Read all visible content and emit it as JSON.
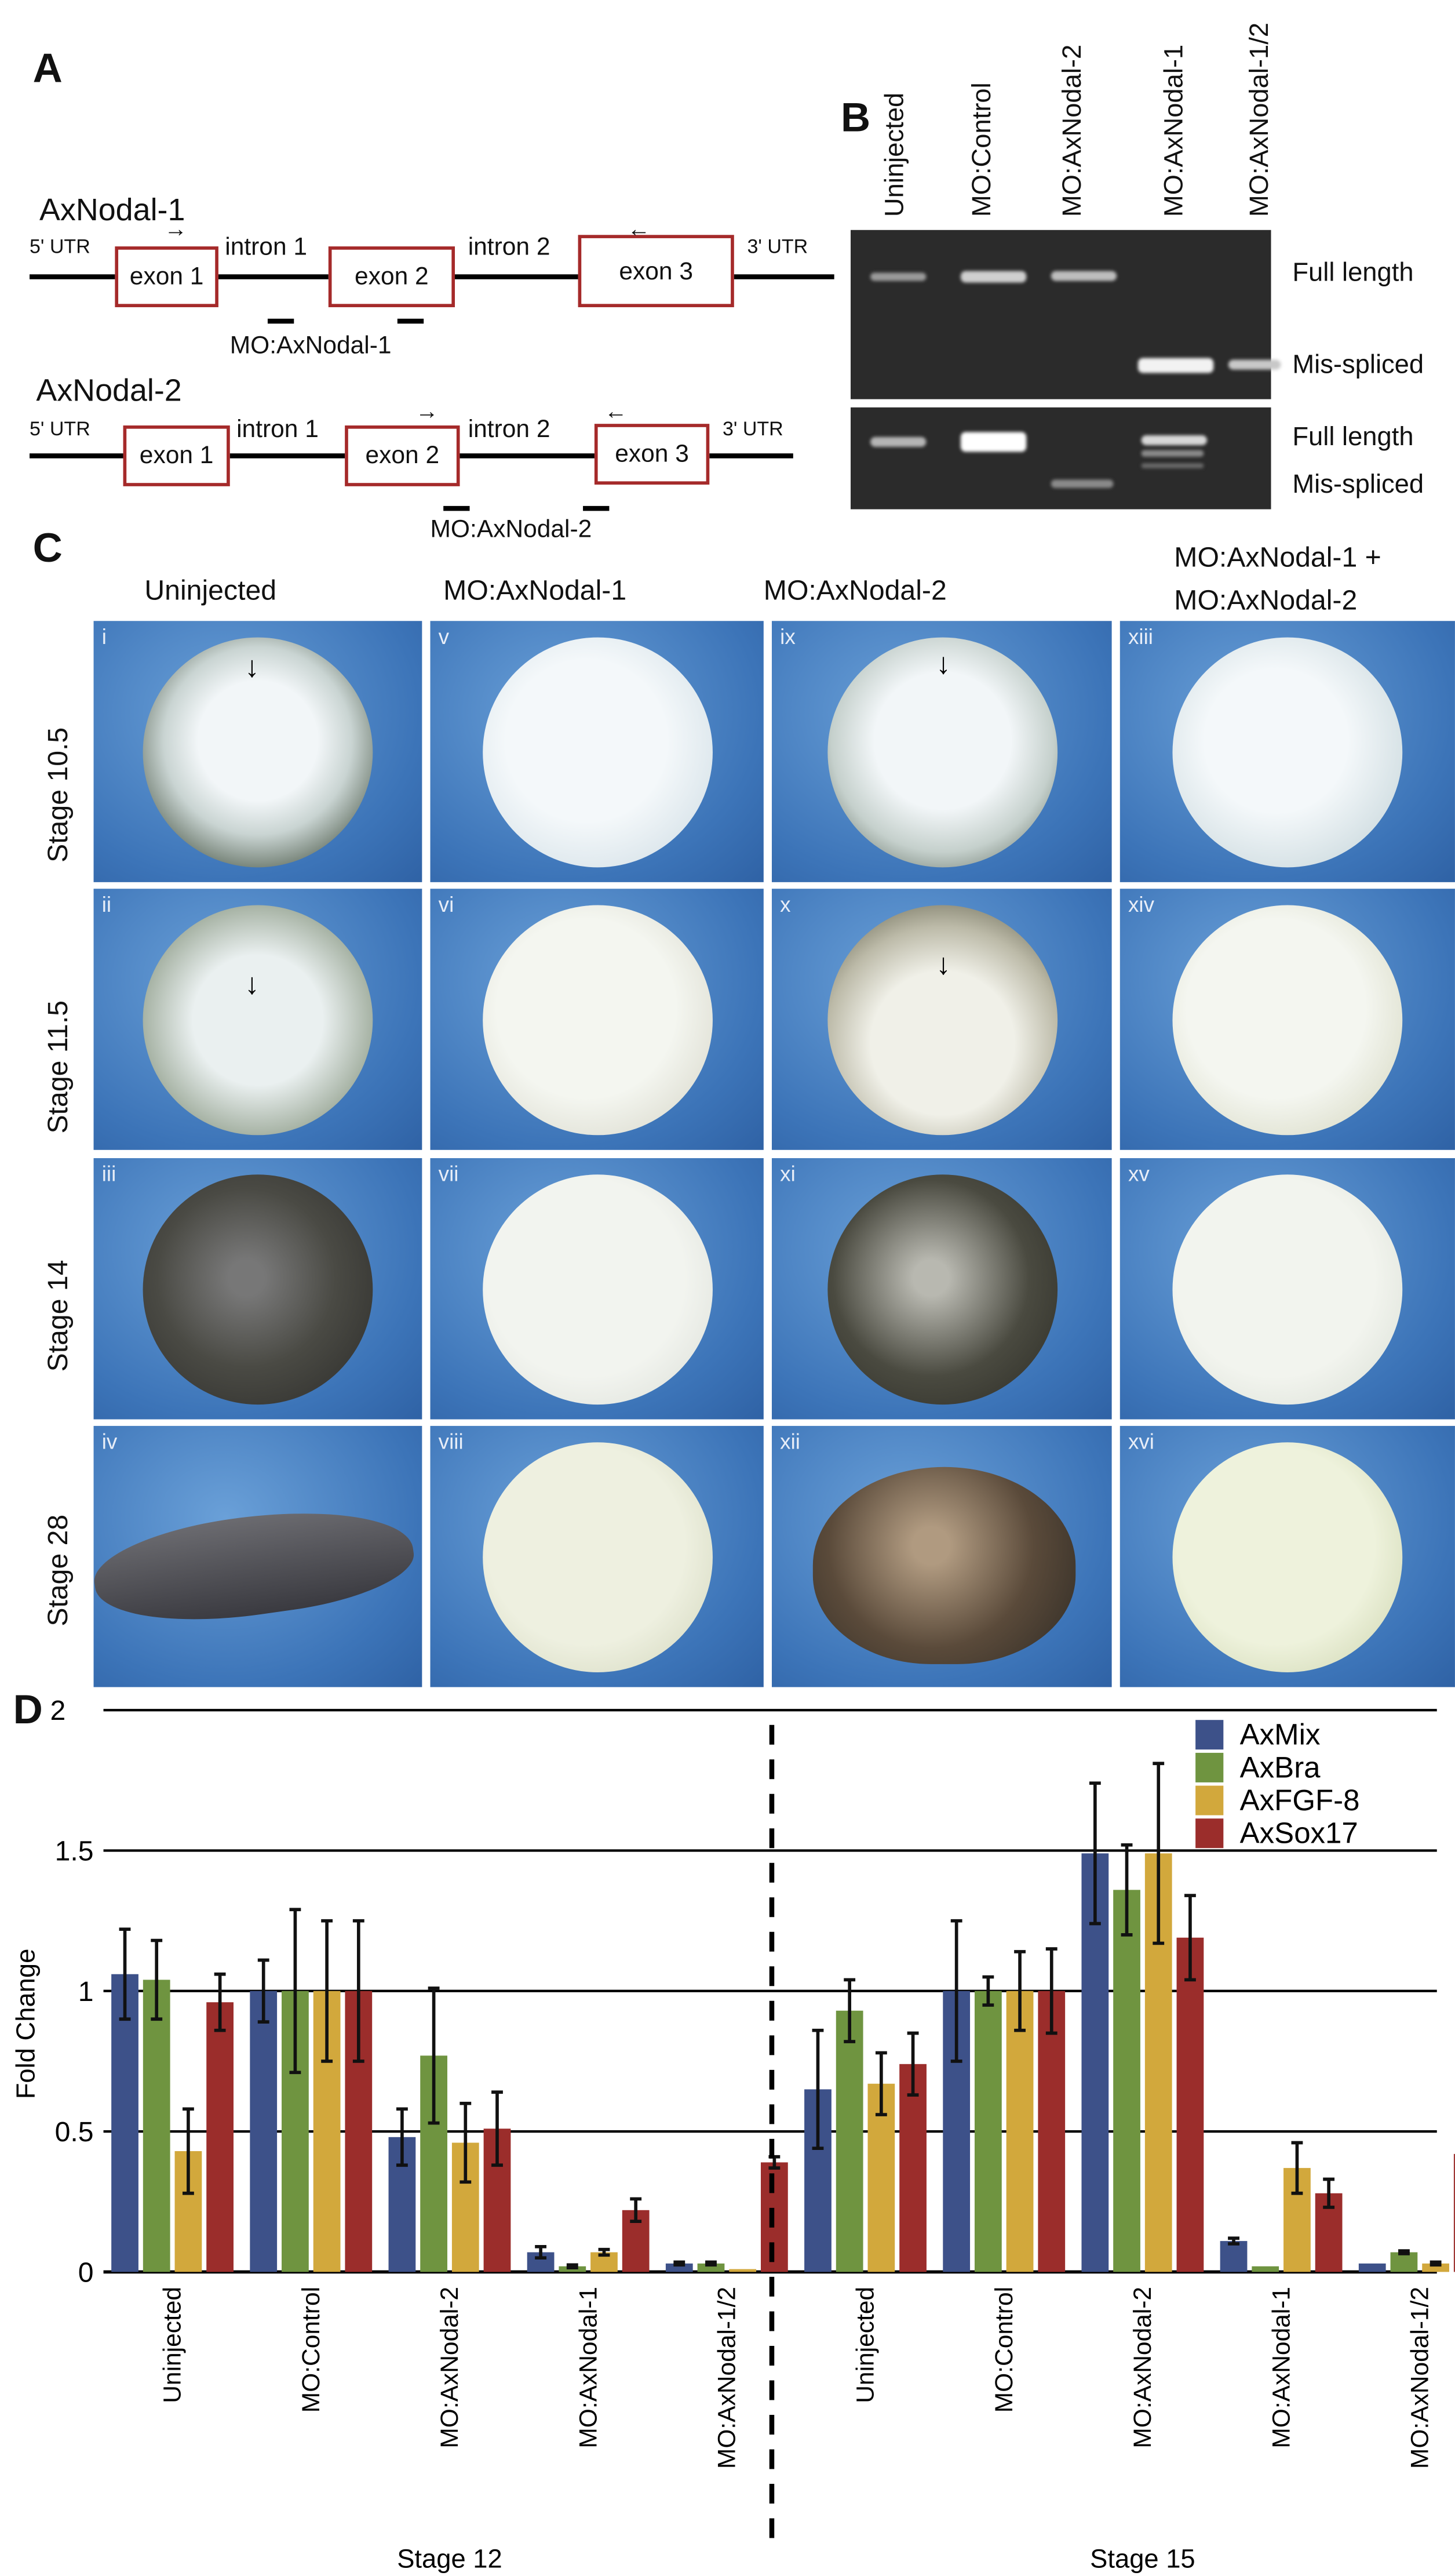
{
  "panel_labels": {
    "a": "A",
    "b": "B",
    "c": "C",
    "d": "D"
  },
  "panel_a": {
    "genes": [
      {
        "name": "AxNodal-1",
        "utr5": "5' UTR",
        "utr3": "3' UTR",
        "exons": [
          "exon 1",
          "exon 2",
          "exon 3"
        ],
        "introns": [
          "intron 1",
          "intron 2"
        ],
        "morpholino": "MO:AxNodal-1"
      },
      {
        "name": "AxNodal-2",
        "utr5": "5' UTR",
        "utr3": "3' UTR",
        "exons": [
          "exon 1",
          "exon 2",
          "exon 3"
        ],
        "introns": [
          "intron 1",
          "intron  2"
        ],
        "morpholino": "MO:AxNodal-2"
      }
    ],
    "primer_forward": "→",
    "primer_reverse": "←"
  },
  "panel_b": {
    "lanes": [
      "Uninjected",
      "MO:Control",
      "MO:AxNodal-2",
      "MO:AxNodal-1",
      "MO:AxNodal-1/2"
    ],
    "gel1_labels": [
      "Full length",
      "Mis-spliced"
    ],
    "gel2_labels": [
      "Full length",
      "Mis-spliced"
    ]
  },
  "panel_c": {
    "columns": [
      "Uninjected",
      "MO:AxNodal-1",
      "MO:AxNodal-2",
      "MO:AxNodal-1 +",
      "MO:AxNodal-2"
    ],
    "rows": [
      "Stage 10.5",
      "Stage 11.5",
      "Stage 14",
      "Stage 28"
    ],
    "numerals": [
      [
        "i",
        "v",
        "ix",
        "xiii"
      ],
      [
        "ii",
        "vi",
        "x",
        "xiv"
      ],
      [
        "iii",
        "vii",
        "xi",
        "xv"
      ],
      [
        "iv",
        "viii",
        "xii",
        "xvi"
      ]
    ],
    "arrow": "↓"
  },
  "chart_data": {
    "type": "bar",
    "title": "",
    "ylabel": "Fold Change",
    "xlabel": "",
    "ylim": [
      0,
      2
    ],
    "yticks": [
      "0",
      "0.5",
      "1",
      "1.5",
      "2"
    ],
    "grid": true,
    "legend_position": "top-right",
    "categories": [
      "Uninjected",
      "MO:Control",
      "MO:AxNodal-2",
      "MO:AxNodal-1",
      "MO:AxNodal-1/2",
      "Uninjected",
      "MO:Control",
      "MO:AxNodal-2",
      "MO:AxNodal-1",
      "MO:AxNodal-1/2"
    ],
    "groups": [
      {
        "label": "Stage 12",
        "categories": [
          0,
          1,
          2,
          3,
          4
        ]
      },
      {
        "label": "Stage 15",
        "categories": [
          5,
          6,
          7,
          8,
          9
        ]
      }
    ],
    "series": [
      {
        "name": "AxMix",
        "color": "#3d5189",
        "values": [
          1.06,
          1.0,
          0.48,
          0.07,
          0.03,
          0.65,
          1.0,
          1.49,
          0.11,
          0.03
        ],
        "errors": [
          0.16,
          0.11,
          0.1,
          0.02,
          0.005,
          0.21,
          0.25,
          0.25,
          0.01,
          0.0
        ]
      },
      {
        "name": "AxBra",
        "color": "#6f9440",
        "values": [
          1.04,
          1.0,
          0.77,
          0.02,
          0.03,
          0.93,
          1.0,
          1.36,
          0.02,
          0.07
        ],
        "errors": [
          0.14,
          0.29,
          0.24,
          0.005,
          0.005,
          0.11,
          0.05,
          0.16,
          0.0,
          0.005
        ]
      },
      {
        "name": "AxFGF-8",
        "color": "#d2a83c",
        "values": [
          0.43,
          1.0,
          0.46,
          0.07,
          0.01,
          0.67,
          1.0,
          1.49,
          0.37,
          0.03
        ],
        "errors": [
          0.15,
          0.25,
          0.14,
          0.01,
          0.0,
          0.11,
          0.14,
          0.32,
          0.09,
          0.005
        ]
      },
      {
        "name": "AxSox17",
        "color": "#9b2d2b",
        "values": [
          0.96,
          1.0,
          0.51,
          0.22,
          0.39,
          0.74,
          1.0,
          1.19,
          0.28,
          0.42
        ],
        "errors": [
          0.1,
          0.25,
          0.13,
          0.04,
          0.02,
          0.11,
          0.15,
          0.15,
          0.05,
          0.06
        ]
      }
    ]
  }
}
